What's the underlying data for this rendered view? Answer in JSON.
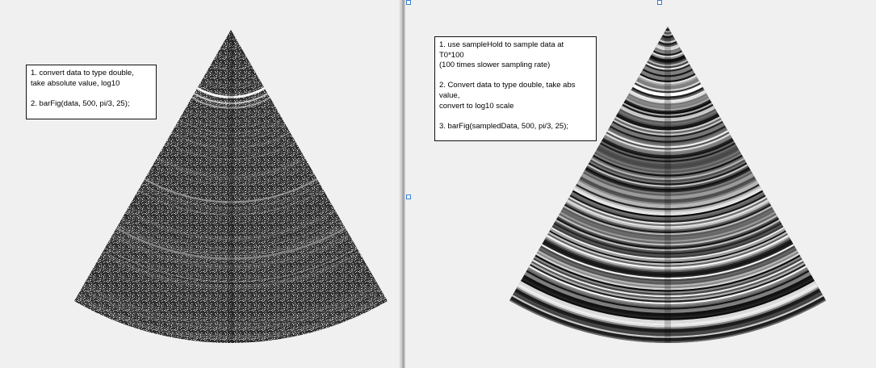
{
  "figures": [
    {
      "id": "left",
      "annotation": [
        "1. convert data to type double,",
        "take absolute value, log10",
        "",
        "2. barFig(data, 500, pi/3, 25);"
      ],
      "image": {
        "style": "fine-noise",
        "colormap": "gray"
      }
    },
    {
      "id": "right",
      "annotation": [
        "1. use sampleHold to sample data at",
        "T0*100",
        "(100 times slower sampling rate)",
        "",
        "2. Convert data to type double, take abs",
        "value,",
        "convert to log10 scale",
        "",
        "3. barFig(sampledData, 500, pi/3, 25);"
      ],
      "image": {
        "style": "banded",
        "colormap": "gray"
      }
    }
  ],
  "colors": {
    "background": "#f0f0f0",
    "handle": "#3a7fd5"
  }
}
